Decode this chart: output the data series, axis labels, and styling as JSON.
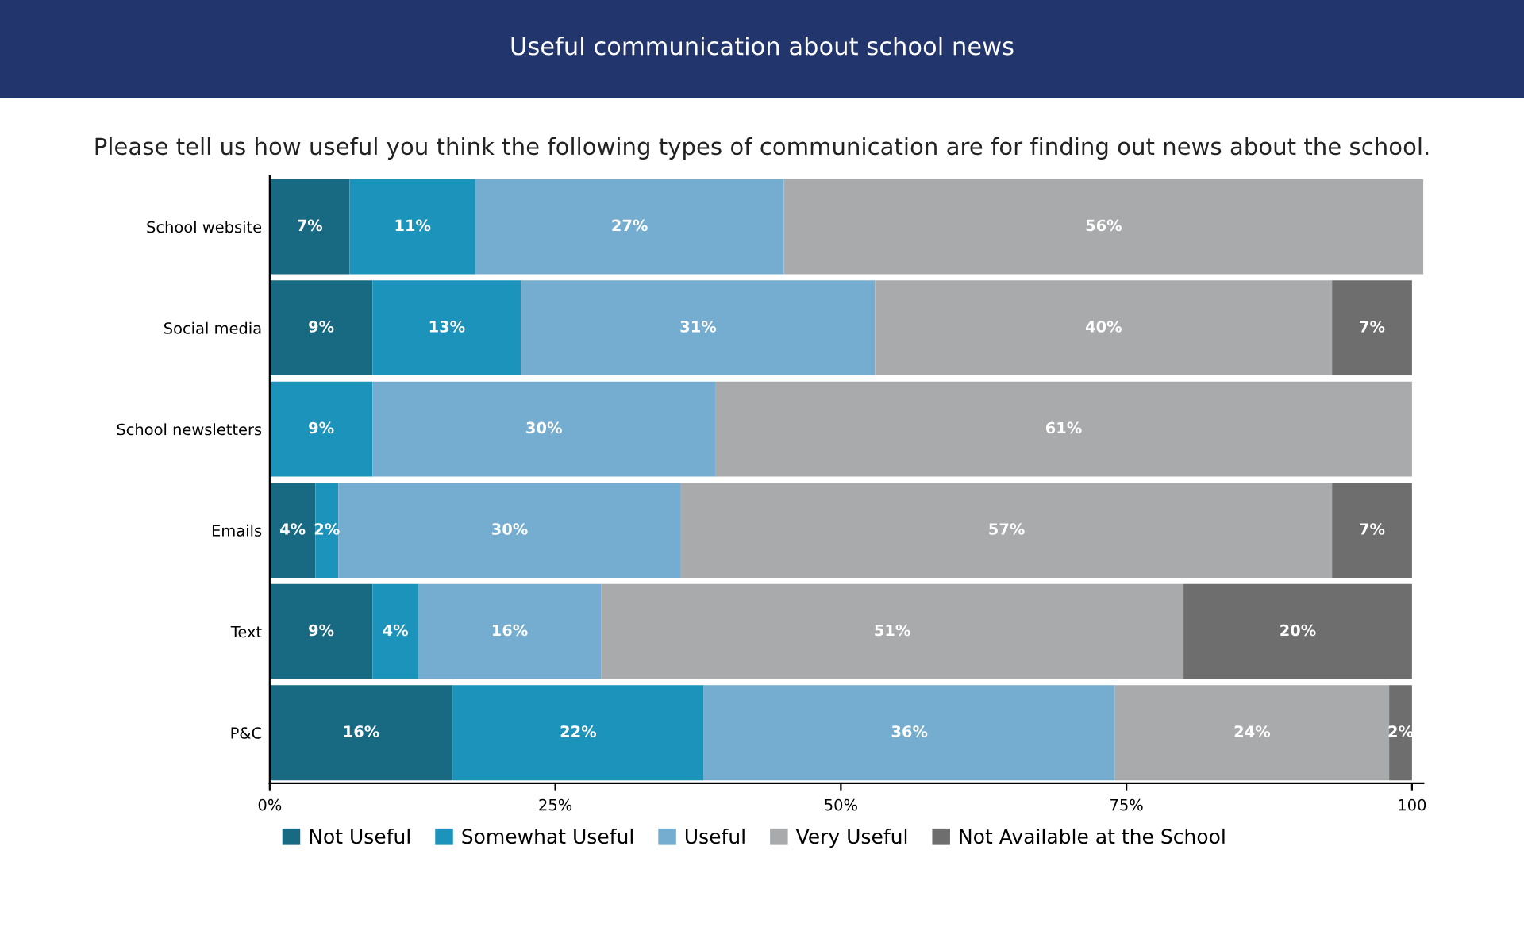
{
  "chart_data": {
    "type": "bar",
    "orientation": "horizontal",
    "stacked": true,
    "title": "Useful communication about school news",
    "subtitle": "Please tell us how useful you think the following types of communication are for finding out news about the school.",
    "categories": [
      "School website",
      "Social media",
      "School newsletters",
      "Emails",
      "Text",
      "P&C"
    ],
    "series": [
      {
        "name": "Not Useful",
        "color": "#176a82",
        "values": [
          7,
          9,
          null,
          4,
          9,
          16
        ],
        "value_labels": [
          "7%",
          "9%",
          null,
          "4%",
          "9%",
          "16%"
        ]
      },
      {
        "name": "Somewhat Useful",
        "color": "#1b93ba",
        "values": [
          11,
          13,
          9,
          2,
          4,
          22
        ],
        "value_labels": [
          "11%",
          "13%",
          "9%",
          "2%",
          "4%",
          "22%"
        ]
      },
      {
        "name": "Useful",
        "color": "#74adcf",
        "values": [
          27,
          31,
          30,
          30,
          16,
          36
        ],
        "value_labels": [
          "27%",
          "31%",
          "30%",
          "30%",
          "16%",
          "36%"
        ]
      },
      {
        "name": "Very Useful",
        "color": "#a9aaac",
        "values": [
          56,
          40,
          61,
          57,
          51,
          24
        ],
        "value_labels": [
          "56%",
          "40%",
          "61%",
          "57%",
          "51%",
          "24%"
        ]
      },
      {
        "name": "Not Available at the School",
        "color": "#6e6e6e",
        "values": [
          null,
          7,
          null,
          7,
          20,
          2
        ],
        "value_labels": [
          null,
          "7%",
          null,
          "7%",
          "20%",
          "2%"
        ]
      }
    ],
    "xlim": [
      0,
      101
    ],
    "xticks": [
      {
        "value": 0,
        "label": "0%"
      },
      {
        "value": 25,
        "label": "25%"
      },
      {
        "value": 50,
        "label": "50%"
      },
      {
        "value": 75,
        "label": "75%"
      },
      100
    ],
    "legend": "bottom",
    "grid": false
  }
}
